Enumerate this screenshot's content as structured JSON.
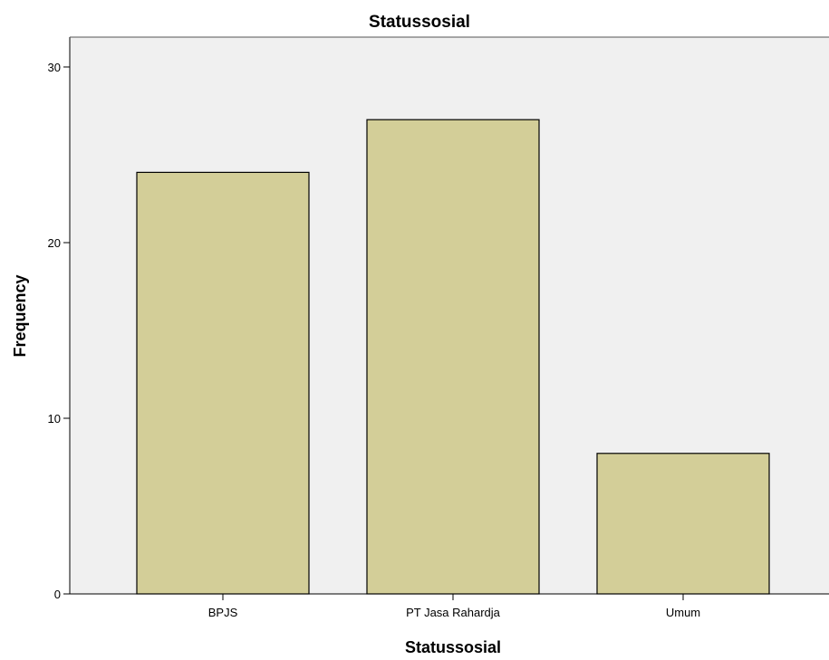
{
  "chart_data": {
    "type": "bar",
    "title": "Statussosial",
    "xlabel": "Statussosial",
    "ylabel": "Frequency",
    "categories": [
      "BPJS",
      "PT Jasa Rahardja",
      "Umum"
    ],
    "values": [
      24,
      27,
      8
    ],
    "ylim": [
      0,
      31.7
    ],
    "yticks": [
      0,
      10,
      20,
      30
    ],
    "grid": false,
    "legend": "none",
    "colors": {
      "bar_fill": "#d3ce98",
      "bar_stroke": "#000000",
      "plot_background": "#f0f0f0",
      "axis": "#000000"
    }
  }
}
